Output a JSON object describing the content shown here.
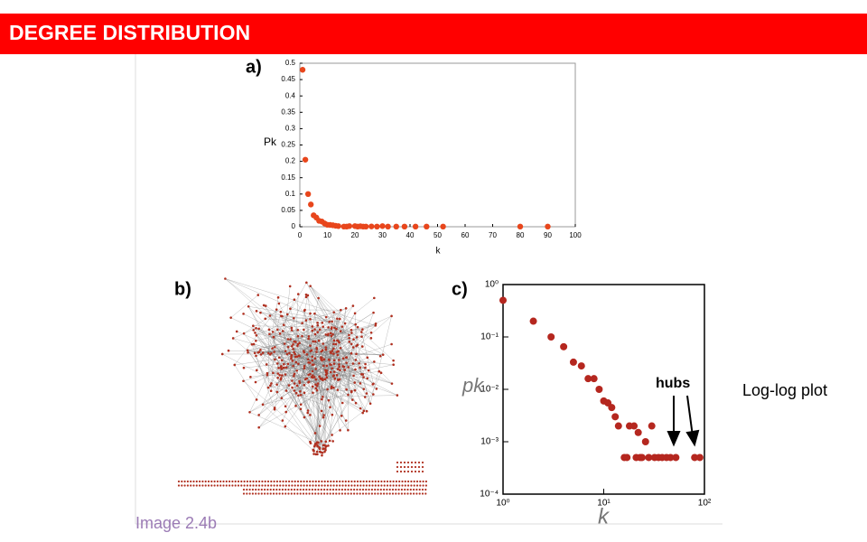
{
  "header": {
    "title": "DEGREE DISTRIBUTION"
  },
  "side_note": "Log-log plot",
  "caption": "Image 2.4b",
  "network_label": "b)",
  "chart_data": [
    {
      "type": "scatter",
      "label": "a)",
      "x_label": "k",
      "y_label": "Pk",
      "color": "#e8461c",
      "x": [
        1,
        2,
        3,
        4,
        5,
        6,
        7,
        8,
        9,
        10,
        11,
        12,
        13,
        14,
        16,
        17,
        18,
        20,
        21,
        22,
        23,
        24,
        26,
        28,
        30,
        32,
        35,
        38,
        42,
        46,
        52,
        80,
        90
      ],
      "y": [
        0.48,
        0.205,
        0.1,
        0.068,
        0.035,
        0.028,
        0.018,
        0.016,
        0.01,
        0.006,
        0.0055,
        0.0045,
        0.003,
        0.002,
        0.0005,
        0.0005,
        0.002,
        0.002,
        0.0005,
        0.0015,
        0.0005,
        0.0005,
        0.001,
        0.0005,
        0.002,
        0.0005,
        0.0005,
        0.0005,
        0.0005,
        0.0005,
        0.0005,
        0.0005,
        0.0005
      ],
      "xlim": [
        0,
        100
      ],
      "ylim": [
        0,
        0.5
      ],
      "xticks": [
        0,
        10,
        20,
        30,
        40,
        50,
        60,
        70,
        80,
        90,
        100
      ],
      "yticks": [
        0,
        0.05,
        0.1,
        0.15,
        0.2,
        0.25,
        0.3,
        0.35,
        0.4,
        0.45,
        0.5
      ],
      "x_log": false,
      "y_log": false
    },
    {
      "type": "scatter",
      "label": "c)",
      "x_label": "k",
      "y_label": "pk",
      "annotation": "hubs",
      "color": "#b5271f",
      "x": [
        1,
        2,
        3,
        4,
        5,
        6,
        7,
        8,
        9,
        10,
        11,
        12,
        13,
        14,
        16,
        17,
        18,
        20,
        21,
        22,
        23,
        24,
        26,
        28,
        30,
        32,
        35,
        38,
        42,
        46,
        52,
        80,
        90
      ],
      "y": [
        0.5,
        0.2,
        0.1,
        0.065,
        0.033,
        0.028,
        0.016,
        0.016,
        0.01,
        0.006,
        0.0055,
        0.0045,
        0.003,
        0.002,
        0.0005,
        0.0005,
        0.002,
        0.002,
        0.0005,
        0.0015,
        0.0005,
        0.0005,
        0.001,
        0.0005,
        0.002,
        0.0005,
        0.0005,
        0.0005,
        0.0005,
        0.0005,
        0.0005,
        0.0005,
        0.0005
      ],
      "xlim": [
        1,
        100
      ],
      "ylim": [
        0.0001,
        1
      ],
      "xticks": [
        {
          "value": 1,
          "label": "10⁰"
        },
        {
          "value": 10,
          "label": "10¹"
        },
        {
          "value": 100,
          "label": "10²"
        }
      ],
      "yticks": [
        {
          "value": 0.0001,
          "label": "10⁻⁴"
        },
        {
          "value": 0.001,
          "label": "10⁻³"
        },
        {
          "value": 0.01,
          "label": "10⁻²"
        },
        {
          "value": 0.1,
          "label": "10⁻¹"
        },
        {
          "value": 1,
          "label": "10⁰"
        }
      ],
      "x_log": true,
      "y_log": true
    }
  ]
}
